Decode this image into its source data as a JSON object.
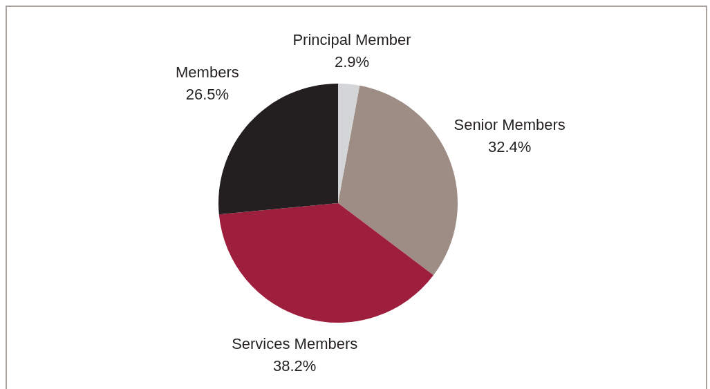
{
  "chart_data": {
    "type": "pie",
    "categories": [
      "Principal Member",
      "Senior Members",
      "Services Members",
      "Members"
    ],
    "values": [
      2.9,
      32.4,
      38.2,
      26.5
    ],
    "colors": [
      "#d4d5d7",
      "#9d8d84",
      "#9e1f3d",
      "#231f20"
    ],
    "value_labels": [
      "2.9%",
      "32.4%",
      "38.2%",
      "26.5%"
    ]
  }
}
